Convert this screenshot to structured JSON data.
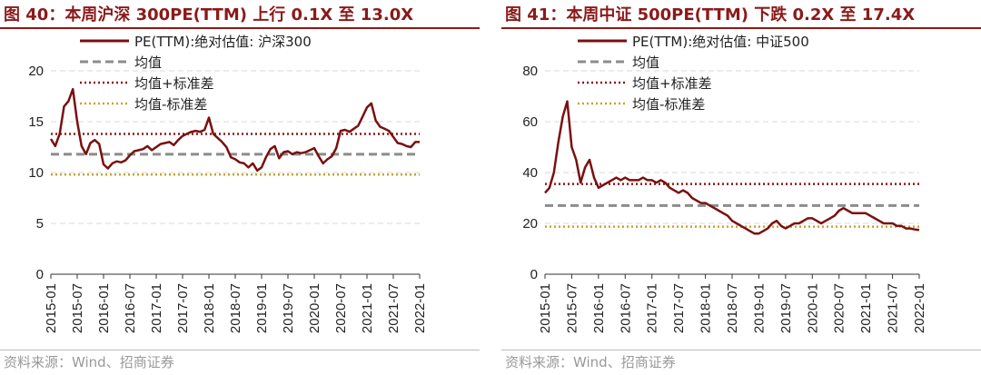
{
  "colors": {
    "title": "#8b1a1a",
    "series": "#7a1010",
    "mean": "#8c8c8c",
    "upper": "#8b1a1a",
    "lower": "#c9a227",
    "grid": "#d9d9d9",
    "source": "#999999"
  },
  "chart_data": [
    {
      "type": "line",
      "title": "图 40：本周沪深 300PE(TTM) 上行 0.1X 至 13.0X",
      "source": "资料来源：Wind、招商证券",
      "ylim": [
        0,
        20
      ],
      "yticks": [
        "0",
        "5",
        "10",
        "15",
        "20"
      ],
      "ytick_values": [
        0,
        5,
        10,
        15,
        20
      ],
      "x_tick_labels": [
        "2015-01",
        "2015-07",
        "2016-01",
        "2016-07",
        "2017-01",
        "2017-07",
        "2018-01",
        "2018-07",
        "2019-01",
        "2019-07",
        "2020-01",
        "2020-07",
        "2021-01",
        "2021-07",
        "2022-01"
      ],
      "grid": "horizontal dashed",
      "legend": {
        "placement": "top-left",
        "entries": [
          "PE(TTM):绝对估值: 沪深300",
          "均值",
          "均值+标准差",
          "均值-标准差"
        ]
      },
      "series": [
        {
          "name": "PE(TTM):绝对估值: 沪深300",
          "x": [
            "2015-01",
            "2015-02",
            "2015-03",
            "2015-04",
            "2015-05",
            "2015-06",
            "2015-07",
            "2015-08",
            "2015-09",
            "2015-10",
            "2015-11",
            "2015-12",
            "2016-01",
            "2016-02",
            "2016-03",
            "2016-04",
            "2016-05",
            "2016-06",
            "2016-07",
            "2016-08",
            "2016-09",
            "2016-10",
            "2016-11",
            "2016-12",
            "2017-01",
            "2017-02",
            "2017-03",
            "2017-04",
            "2017-05",
            "2017-06",
            "2017-07",
            "2017-08",
            "2017-09",
            "2017-10",
            "2017-11",
            "2017-12",
            "2018-01",
            "2018-02",
            "2018-03",
            "2018-04",
            "2018-05",
            "2018-06",
            "2018-07",
            "2018-08",
            "2018-09",
            "2018-10",
            "2018-11",
            "2018-12",
            "2019-01",
            "2019-02",
            "2019-03",
            "2019-04",
            "2019-05",
            "2019-06",
            "2019-07",
            "2019-08",
            "2019-09",
            "2019-10",
            "2019-11",
            "2019-12",
            "2020-01",
            "2020-02",
            "2020-03",
            "2020-04",
            "2020-05",
            "2020-06",
            "2020-07",
            "2020-08",
            "2020-09",
            "2020-10",
            "2020-11",
            "2020-12",
            "2021-01",
            "2021-02",
            "2021-03",
            "2021-04",
            "2021-05",
            "2021-06",
            "2021-07",
            "2021-08",
            "2021-09",
            "2021-10",
            "2021-11",
            "2021-12",
            "2022-01"
          ],
          "values": [
            13.3,
            12.6,
            13.8,
            16.5,
            17.0,
            18.2,
            15.0,
            12.6,
            11.8,
            12.9,
            13.2,
            12.8,
            10.8,
            10.4,
            10.9,
            11.1,
            11.0,
            11.2,
            11.7,
            12.1,
            12.2,
            12.3,
            12.6,
            12.2,
            12.5,
            12.8,
            12.9,
            13.0,
            12.7,
            13.2,
            13.6,
            13.8,
            14.0,
            14.1,
            14.0,
            14.2,
            15.4,
            13.8,
            13.4,
            13.0,
            12.5,
            11.5,
            11.3,
            11.0,
            10.9,
            10.5,
            10.9,
            10.2,
            10.5,
            11.5,
            12.3,
            12.6,
            11.4,
            12.0,
            12.1,
            11.8,
            12.0,
            11.9,
            12.0,
            12.2,
            12.4,
            11.6,
            10.9,
            11.3,
            11.6,
            12.4,
            14.1,
            14.2,
            14.0,
            14.3,
            14.6,
            15.5,
            16.4,
            16.8,
            15.1,
            14.5,
            14.3,
            14.1,
            13.5,
            12.9,
            12.8,
            12.6,
            12.5,
            13.0,
            13.0
          ]
        },
        {
          "name": "均值",
          "constant": 11.8
        },
        {
          "name": "均值+标准差",
          "constant": 13.8
        },
        {
          "name": "均值-标准差",
          "constant": 9.8
        }
      ]
    },
    {
      "type": "line",
      "title": "图 41：本周中证 500PE(TTM) 下跌 0.2X 至 17.4X",
      "source": "资料来源：Wind、招商证券",
      "ylim": [
        0,
        80
      ],
      "yticks": [
        "0",
        "20",
        "40",
        "60",
        "80"
      ],
      "ytick_values": [
        0,
        20,
        40,
        60,
        80
      ],
      "x_tick_labels": [
        "2015-01",
        "2015-07",
        "2016-01",
        "2016-07",
        "2017-01",
        "2017-07",
        "2018-01",
        "2018-07",
        "2019-01",
        "2019-07",
        "2020-01",
        "2020-07",
        "2021-01",
        "2021-07",
        "2022-01"
      ],
      "grid": "horizontal dashed",
      "legend": {
        "placement": "top-left",
        "entries": [
          "PE(TTM):绝对估值: 中证500",
          "均值",
          "均值+标准差",
          "均值-标准差"
        ]
      },
      "series": [
        {
          "name": "PE(TTM):绝对估值: 中证500",
          "x": [
            "2015-01",
            "2015-02",
            "2015-03",
            "2015-04",
            "2015-05",
            "2015-06",
            "2015-07",
            "2015-08",
            "2015-09",
            "2015-10",
            "2015-11",
            "2015-12",
            "2016-01",
            "2016-02",
            "2016-03",
            "2016-04",
            "2016-05",
            "2016-06",
            "2016-07",
            "2016-08",
            "2016-09",
            "2016-10",
            "2016-11",
            "2016-12",
            "2017-01",
            "2017-02",
            "2017-03",
            "2017-04",
            "2017-05",
            "2017-06",
            "2017-07",
            "2017-08",
            "2017-09",
            "2017-10",
            "2017-11",
            "2017-12",
            "2018-01",
            "2018-02",
            "2018-03",
            "2018-04",
            "2018-05",
            "2018-06",
            "2018-07",
            "2018-08",
            "2018-09",
            "2018-10",
            "2018-11",
            "2018-12",
            "2019-01",
            "2019-02",
            "2019-03",
            "2019-04",
            "2019-05",
            "2019-06",
            "2019-07",
            "2019-08",
            "2019-09",
            "2019-10",
            "2019-11",
            "2019-12",
            "2020-01",
            "2020-02",
            "2020-03",
            "2020-04",
            "2020-05",
            "2020-06",
            "2020-07",
            "2020-08",
            "2020-09",
            "2020-10",
            "2020-11",
            "2020-12",
            "2021-01",
            "2021-02",
            "2021-03",
            "2021-04",
            "2021-05",
            "2021-06",
            "2021-07",
            "2021-08",
            "2021-09",
            "2021-10",
            "2021-11",
            "2021-12",
            "2022-01"
          ],
          "values": [
            32,
            34,
            40,
            52,
            62,
            68,
            50,
            45,
            36,
            42,
            45,
            38,
            34,
            35,
            36,
            37,
            38,
            37,
            38,
            37,
            37,
            37,
            38,
            37,
            37,
            36,
            37,
            36,
            34,
            33,
            32,
            33,
            32,
            30,
            29,
            28,
            28,
            27,
            26,
            25,
            24,
            23,
            21,
            20,
            19,
            18,
            17,
            16,
            16,
            17,
            18,
            20,
            21,
            19,
            18,
            19,
            20,
            20,
            21,
            22,
            22,
            21,
            20,
            21,
            22,
            23,
            25,
            26,
            25,
            24,
            24,
            24,
            24,
            23,
            22,
            21,
            20,
            20,
            20,
            19,
            19,
            18,
            18,
            17.6,
            17.4
          ]
        },
        {
          "name": "均值",
          "constant": 27
        },
        {
          "name": "均值+标准差",
          "constant": 35.5
        },
        {
          "name": "均值-标准差",
          "constant": 18.7
        }
      ]
    }
  ]
}
